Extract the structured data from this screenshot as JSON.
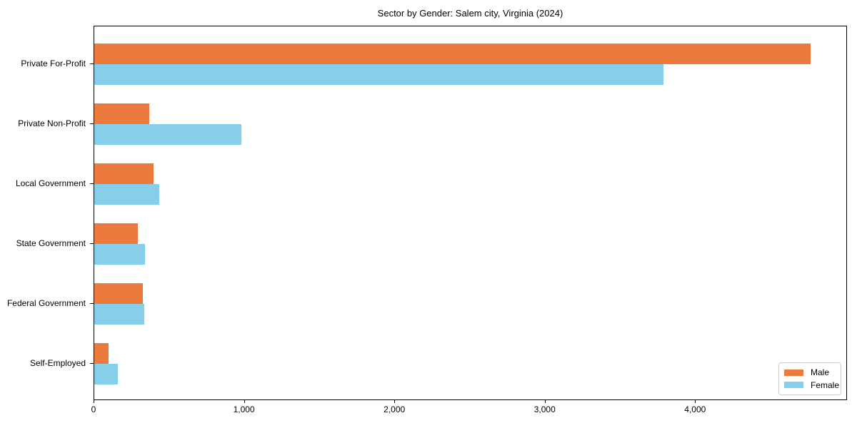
{
  "figure": {
    "background_color": "#ffffff",
    "axis_color": "#000000"
  },
  "chart_data": {
    "type": "bar",
    "orientation": "horizontal",
    "title": "Sector by Gender: Salem city, Virginia (2024)",
    "xlabel": "",
    "ylabel": "",
    "grid": false,
    "categories": [
      "Private For-Profit",
      "Private Non-Profit",
      "Local Government",
      "State Government",
      "Federal Government",
      "Self-Employed"
    ],
    "series": [
      {
        "name": "Male",
        "color": "#eb7a3c",
        "values": [
          4770,
          365,
          395,
          290,
          325,
          95
        ]
      },
      {
        "name": "Female",
        "color": "#87ceeb",
        "values": [
          3790,
          980,
          435,
          340,
          335,
          155
        ]
      }
    ],
    "xlim": [
      0,
      5010
    ],
    "xticks": [
      {
        "value": 0,
        "label": "0"
      },
      {
        "value": 1000,
        "label": "1,000"
      },
      {
        "value": 2000,
        "label": "2,000"
      },
      {
        "value": 3000,
        "label": "3,000"
      },
      {
        "value": 4000,
        "label": "4,000"
      }
    ],
    "legend": {
      "position": "lower right",
      "entries": [
        "Male",
        "Female"
      ]
    }
  }
}
